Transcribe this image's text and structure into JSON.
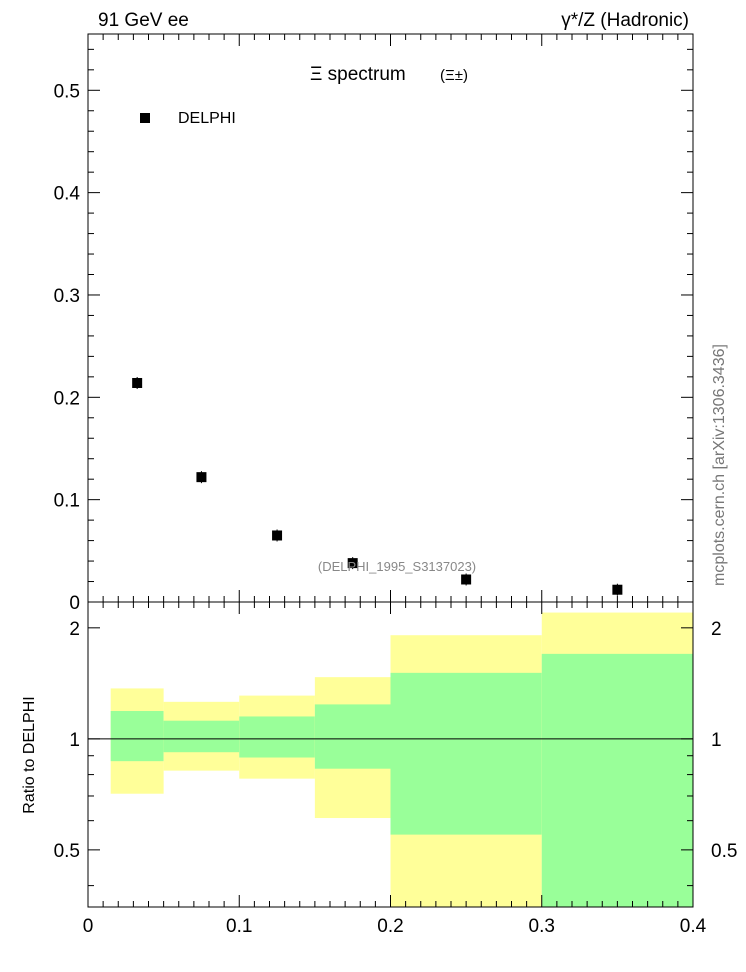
{
  "header": {
    "left_title": "91 GeV ee",
    "right_title": "γ*/Z (Hadronic)"
  },
  "side_label": "mcplots.cern.ch [arXiv:1306.3436]",
  "chart_data": [
    {
      "type": "scatter",
      "title": "Ξ spectrum (Ξ±)",
      "title_main": "Ξ spectrum",
      "title_sub": "(Ξ±)",
      "watermark": "(DELPHI_1995_S3137023)",
      "legend": [
        {
          "name": "DELPHI",
          "marker": "square",
          "color": "#000000",
          "placement": "top-left"
        }
      ],
      "xlim": [
        0,
        0.4
      ],
      "ylim": [
        0,
        0.555
      ],
      "y_ticks": [
        0,
        0.1,
        0.2,
        0.3,
        0.4,
        0.5
      ],
      "y_tick_labels": [
        "0",
        "0.1",
        "0.2",
        "0.3",
        "0.4",
        "0.5"
      ],
      "series": [
        {
          "name": "DELPHI",
          "x": [
            0.0325,
            0.075,
            0.125,
            0.175,
            0.25,
            0.35
          ],
          "y": [
            0.214,
            0.122,
            0.065,
            0.038,
            0.022,
            0.012
          ]
        }
      ]
    },
    {
      "type": "area",
      "ylabel": "Ratio to DELPHI",
      "xlim": [
        0,
        0.4
      ],
      "ylim": [
        0.35,
        2.35
      ],
      "y_scale": "log",
      "y_ticks": [
        0.5,
        1,
        2
      ],
      "y_tick_labels": [
        "0.5",
        "1",
        "2"
      ],
      "x_ticks": [
        0,
        0.1,
        0.2,
        0.3,
        0.4
      ],
      "x_tick_labels": [
        "0",
        "0.1",
        "0.2",
        "0.3",
        "0.4"
      ],
      "reference_line": 1,
      "bins": [
        {
          "xlo": 0.015,
          "xhi": 0.05,
          "inner": [
            0.87,
            1.19
          ],
          "outer": [
            0.71,
            1.37
          ]
        },
        {
          "xlo": 0.05,
          "xhi": 0.1,
          "inner": [
            0.92,
            1.12
          ],
          "outer": [
            0.82,
            1.26
          ]
        },
        {
          "xlo": 0.1,
          "xhi": 0.15,
          "inner": [
            0.89,
            1.15
          ],
          "outer": [
            0.78,
            1.31
          ]
        },
        {
          "xlo": 0.15,
          "xhi": 0.2,
          "inner": [
            0.83,
            1.24
          ],
          "outer": [
            0.61,
            1.47
          ]
        },
        {
          "xlo": 0.2,
          "xhi": 0.3,
          "inner": [
            0.55,
            1.51
          ],
          "outer": [
            0.35,
            1.91
          ]
        },
        {
          "xlo": 0.3,
          "xhi": 0.4,
          "inner": [
            0.35,
            1.7
          ],
          "outer": [
            0.35,
            2.2
          ]
        }
      ],
      "colors": {
        "inner": "#99ff99",
        "outer": "#ffff99"
      }
    }
  ]
}
